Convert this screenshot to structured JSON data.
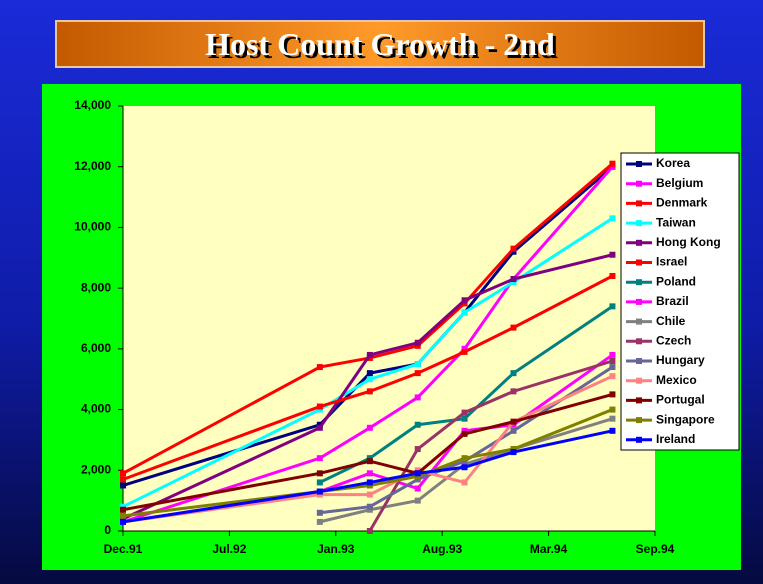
{
  "chart_data": {
    "type": "line",
    "title": "Host Count Growth - 2nd",
    "x": [
      0,
      1.85,
      2.32,
      2.77,
      3.21,
      3.67,
      4.6
    ],
    "xlim": [
      0,
      5
    ],
    "xticks": [
      {
        "value": 0,
        "label": "Dec.91"
      },
      {
        "value": 1,
        "label": "Jul.92"
      },
      {
        "value": 2,
        "label": "Jan.93"
      },
      {
        "value": 3,
        "label": "Aug.93"
      },
      {
        "value": 4,
        "label": "Mar.94"
      },
      {
        "value": 5,
        "label": "Sep.94"
      }
    ],
    "ylim": [
      0,
      14000
    ],
    "yticks": [
      0,
      {
        "value": 2000,
        "label": "2,000"
      },
      {
        "value": 4000,
        "label": "4,000"
      },
      {
        "value": 6000,
        "label": "6,000"
      },
      {
        "value": 8000,
        "label": "8,000"
      },
      {
        "value": 10000,
        "label": "10,000"
      },
      {
        "value": 12000,
        "label": "12,000"
      },
      {
        "value": 14000,
        "label": "14,000"
      }
    ],
    "legend": "right",
    "series": [
      {
        "name": "Korea",
        "color": "#000080",
        "values": [
          1500,
          3500,
          5200,
          5500,
          7200,
          9200,
          12000
        ]
      },
      {
        "name": "Belgium",
        "color": "#ff00ff",
        "values": [
          300,
          2400,
          3400,
          4400,
          6000,
          8300,
          12000
        ]
      },
      {
        "name": "Denmark",
        "color": "#ff0000",
        "values": [
          1900,
          5400,
          5700,
          6100,
          7500,
          9300,
          12100
        ]
      },
      {
        "name": "Taiwan",
        "color": "#00ffff",
        "values": [
          800,
          4000,
          5000,
          5500,
          7200,
          8200,
          10300
        ]
      },
      {
        "name": "Hong Kong",
        "color": "#800080",
        "values": [
          400,
          3400,
          5800,
          6200,
          7600,
          8300,
          9100
        ]
      },
      {
        "name": "Israel",
        "color": "#ff0000",
        "values": [
          1700,
          4100,
          4600,
          5200,
          5900,
          6700,
          8400
        ]
      },
      {
        "name": "Poland",
        "color": "#008080",
        "values": [
          null,
          1600,
          2400,
          3500,
          3700,
          5200,
          7400
        ]
      },
      {
        "name": "Brazil",
        "color": "#ff00ff",
        "values": [
          300,
          1300,
          1900,
          1400,
          3300,
          3500,
          5800
        ]
      },
      {
        "name": "Chile",
        "color": "#808080",
        "values": [
          null,
          300,
          700,
          1000,
          2200,
          2700,
          3700
        ]
      },
      {
        "name": "Czech",
        "color": "#993366",
        "values": [
          null,
          null,
          0,
          2700,
          3900,
          4600,
          5600
        ]
      },
      {
        "name": "Hungary",
        "color": "#666699",
        "values": [
          null,
          600,
          800,
          1700,
          2300,
          3300,
          5400
        ]
      },
      {
        "name": "Mexico",
        "color": "#ff8080",
        "values": [
          300,
          1200,
          1200,
          2000,
          1600,
          3600,
          5100
        ]
      },
      {
        "name": "Portugal",
        "color": "#800000",
        "values": [
          700,
          1900,
          2300,
          1900,
          3200,
          3600,
          4500
        ]
      },
      {
        "name": "Singapore",
        "color": "#808000",
        "values": [
          500,
          1300,
          1500,
          1800,
          2400,
          2700,
          4000
        ]
      },
      {
        "name": "Ireland",
        "color": "#0000ff",
        "values": [
          300,
          1300,
          1600,
          1900,
          2100,
          2600,
          3300
        ]
      }
    ]
  }
}
